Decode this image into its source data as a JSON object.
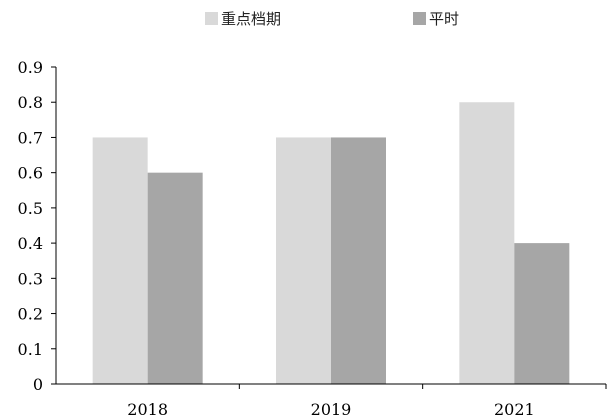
{
  "chart_data": {
    "type": "bar",
    "categories": [
      "2018",
      "2019",
      "2021"
    ],
    "series": [
      {
        "name": "重点档期",
        "values": [
          0.7,
          0.7,
          0.8
        ],
        "color": "#d9d9d9"
      },
      {
        "name": "平时",
        "values": [
          0.6,
          0.7,
          0.4
        ],
        "color": "#a6a6a6"
      }
    ],
    "ylim": [
      0,
      0.9
    ],
    "yticks": [
      "0",
      "0.1",
      "0.2",
      "0.3",
      "0.4",
      "0.5",
      "0.6",
      "0.7",
      "0.8",
      "0.9"
    ],
    "grid": false,
    "legend_position": "top-center",
    "title": "",
    "xlabel": "",
    "ylabel": ""
  }
}
